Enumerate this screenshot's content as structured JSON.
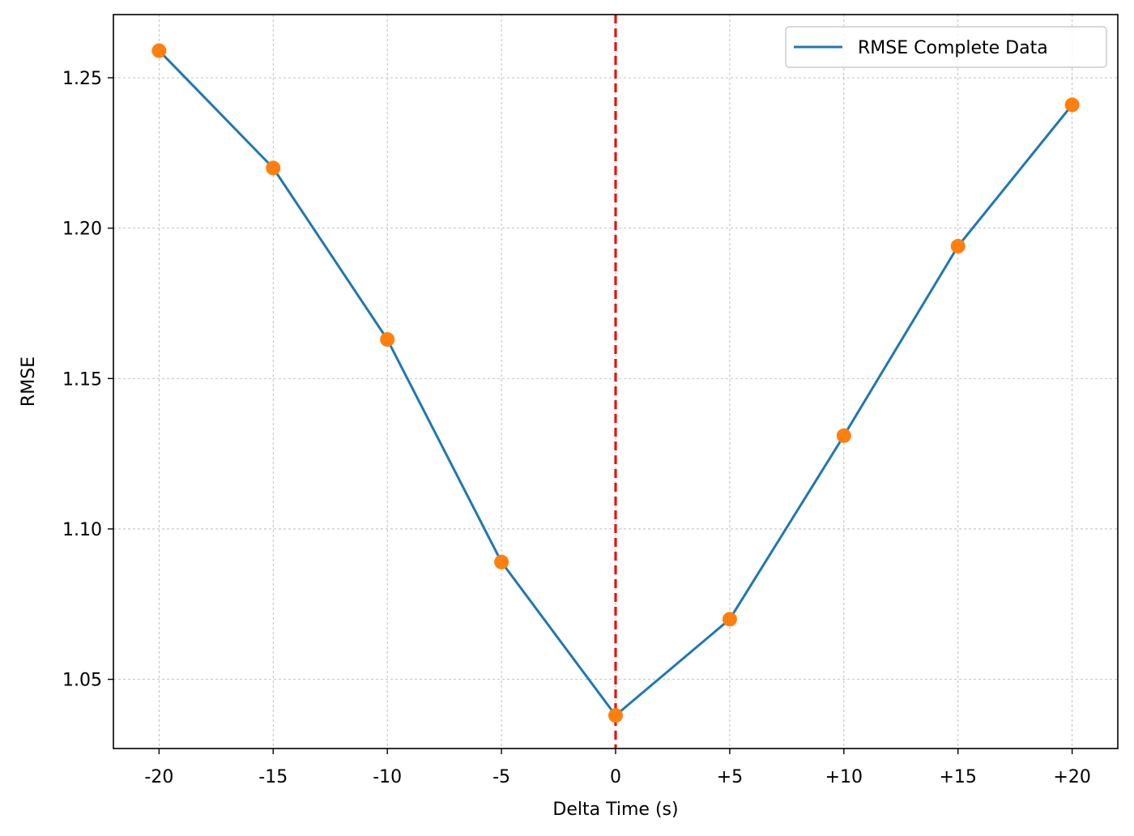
{
  "chart_data": {
    "type": "line",
    "title": "",
    "xlabel": "Delta Time (s)",
    "ylabel": "RMSE",
    "x": [
      -20,
      -15,
      -10,
      -5,
      0,
      5,
      10,
      15,
      20
    ],
    "x_tick_labels": [
      "-20",
      "-15",
      "-10",
      "-5",
      "0",
      "+5",
      "+10",
      "+15",
      "+20"
    ],
    "y_ticks": [
      1.05,
      1.1,
      1.15,
      1.2,
      1.25
    ],
    "y_tick_labels": [
      "1.05",
      "1.10",
      "1.15",
      "1.20",
      "1.25"
    ],
    "xlim": [
      -22,
      22
    ],
    "ylim": [
      1.027,
      1.271
    ],
    "grid": true,
    "legend_position": "top-right",
    "series": [
      {
        "name": "RMSE Complete Data",
        "color": "#1f77b4",
        "marker_color": "#ff7f0e",
        "values": [
          1.259,
          1.22,
          1.163,
          1.089,
          1.038,
          1.07,
          1.131,
          1.194,
          1.241
        ]
      }
    ],
    "reference_line": {
      "axis": "x",
      "value": 0,
      "color": "#e8120c",
      "style": "dashed"
    }
  }
}
